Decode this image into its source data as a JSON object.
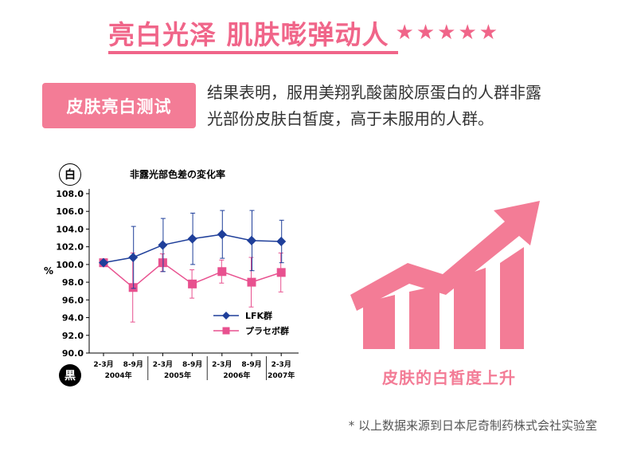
{
  "header": {
    "title": "亮白光泽  肌肤嘭弹动人",
    "stars": [
      "★",
      "★",
      "★",
      "★",
      "★"
    ]
  },
  "test_tag": "皮肤亮白测试",
  "description": {
    "line1": "结果表明，服用美翔乳酸菌胶原蛋白的人群非露",
    "line2": "光部份皮肤白皙度，高于未服用的人群。"
  },
  "axis_badges": {
    "top": "白",
    "bottom": "黒"
  },
  "y_unit": "%",
  "chart_data": {
    "type": "line",
    "title": "非露光部色差の変化率",
    "ylabel": "%",
    "ylim": [
      90.0,
      108.0
    ],
    "yticks": [
      "108.0",
      "106.0",
      "104.0",
      "102.0",
      "100.0",
      "98.0",
      "96.0",
      "94.0",
      "92.0",
      "90.0"
    ],
    "categories": [
      "2-3月",
      "8-9月",
      "2-3月",
      "8-9月",
      "2-3月",
      "8-9月",
      "2-3月"
    ],
    "year_labels": [
      {
        "label": "2004年",
        "index": 0.5
      },
      {
        "label": "2005年",
        "index": 2.5
      },
      {
        "label": "2006年",
        "index": 4.5
      },
      {
        "label": "2007年",
        "index": 6
      }
    ],
    "series": [
      {
        "name": "LFK群",
        "color": "#1f3f9a",
        "marker": "diamond",
        "values": [
          100.2,
          100.8,
          102.2,
          102.9,
          103.4,
          102.7,
          102.6
        ],
        "error": [
          0,
          3.5,
          3.0,
          2.9,
          2.7,
          3.4,
          2.4
        ]
      },
      {
        "name": "プラセボ群",
        "color": "#e8518f",
        "marker": "square",
        "values": [
          100.2,
          97.4,
          100.2,
          97.8,
          99.2,
          98.0,
          99.1
        ],
        "error": [
          0,
          3.9,
          1.0,
          1.6,
          1.3,
          2.8,
          2.2
        ]
      }
    ],
    "legend_position": "bottom-right"
  },
  "right_figure": {
    "caption": "皮肤的白皙度上升",
    "color": "#f37c96"
  },
  "footnote": "* 以上数据来源到日本尼奇制药株式会社实验室"
}
